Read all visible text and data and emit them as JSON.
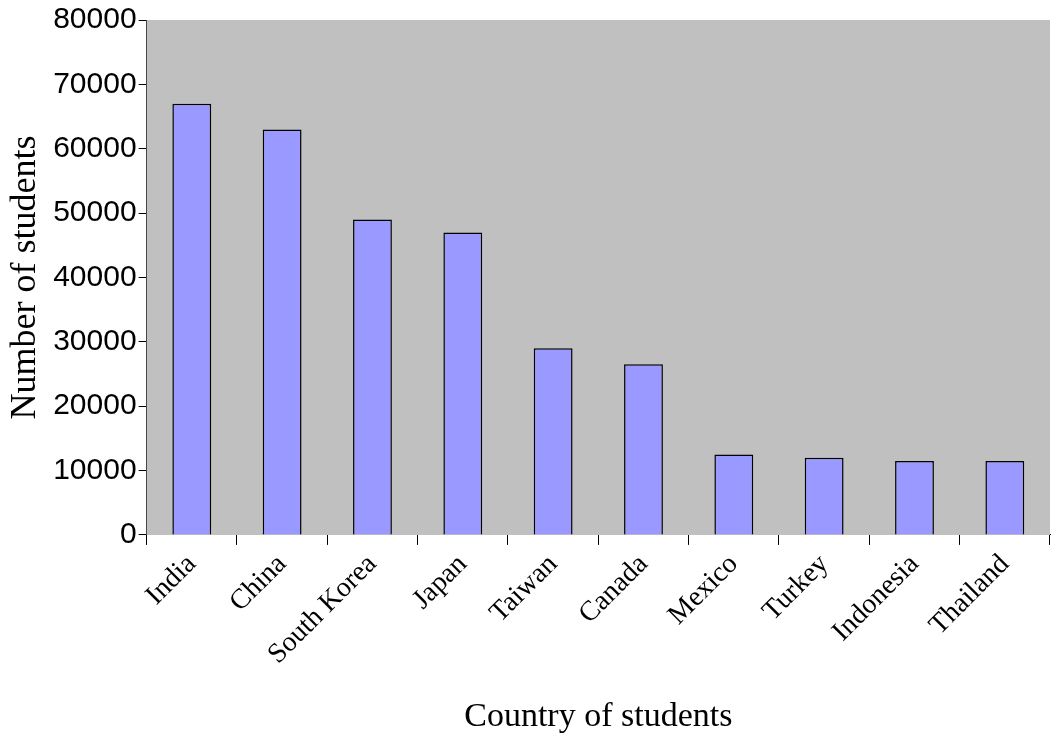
{
  "chart_data": {
    "type": "bar",
    "xlabel": "Country of students",
    "ylabel": "Number of students",
    "categories": [
      "India",
      "China",
      "South Korea",
      "Japan",
      "Taiwan",
      "Canada",
      "Mexico",
      "Turkey",
      "Indonesia",
      "Thailand"
    ],
    "values": [
      67000,
      63000,
      49000,
      47000,
      29000,
      26500,
      12500,
      12000,
      11500,
      11500
    ],
    "color": "#9999ff",
    "ylim": [
      0,
      80000
    ],
    "yticks": [
      0,
      10000,
      20000,
      30000,
      40000,
      50000,
      60000,
      70000,
      80000
    ],
    "legend": false
  }
}
